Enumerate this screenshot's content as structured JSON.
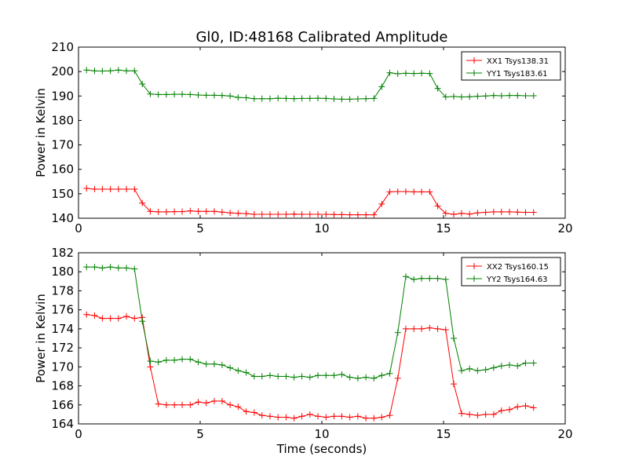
{
  "title": "Gl0, ID:48168 Calibrated Amplitude",
  "chart_data": [
    {
      "type": "line",
      "title": "Gl0, ID:48168 Calibrated Amplitude",
      "xlabel": "",
      "ylabel": "Power in Kelvin",
      "xlim": [
        0,
        20
      ],
      "ylim": [
        140,
        210
      ],
      "xticks": [
        "0",
        "5",
        "10",
        "15",
        "20"
      ],
      "yticks": [
        "140",
        "150",
        "160",
        "170",
        "180",
        "190",
        "200",
        "210"
      ],
      "grid": false,
      "legend_position": "top-right",
      "x": [
        0.33,
        0.66,
        0.98,
        1.31,
        1.64,
        1.97,
        2.3,
        2.62,
        2.95,
        3.28,
        3.61,
        3.94,
        4.26,
        4.59,
        4.92,
        5.25,
        5.58,
        5.9,
        6.23,
        6.56,
        6.89,
        7.22,
        7.54,
        7.87,
        8.2,
        8.53,
        8.86,
        9.18,
        9.51,
        9.84,
        10.17,
        10.5,
        10.82,
        11.15,
        11.48,
        11.81,
        12.14,
        12.46,
        12.79,
        13.12,
        13.45,
        13.78,
        14.1,
        14.43,
        14.76,
        15.09,
        15.42,
        15.74,
        16.07,
        16.4,
        16.73,
        17.06,
        17.38,
        17.71,
        18.04,
        18.37,
        18.7
      ],
      "series": [
        {
          "name": "XX1 Tsys138.31",
          "color": "#ff0000",
          "values": [
            152.2,
            151.9,
            151.9,
            151.9,
            151.9,
            151.9,
            151.9,
            146.2,
            142.8,
            142.6,
            142.6,
            142.7,
            142.7,
            143.0,
            142.8,
            142.8,
            142.8,
            142.5,
            142.2,
            142.0,
            141.9,
            141.6,
            141.6,
            141.6,
            141.6,
            141.6,
            141.7,
            141.6,
            141.6,
            141.6,
            141.6,
            141.5,
            141.5,
            141.4,
            141.4,
            141.4,
            141.4,
            145.8,
            150.8,
            150.9,
            150.9,
            150.8,
            150.8,
            150.8,
            145.0,
            142.0,
            141.6,
            142.0,
            141.7,
            142.2,
            142.4,
            142.6,
            142.6,
            142.6,
            142.5,
            142.4,
            142.4
          ]
        },
        {
          "name": "YY1 Tsys183.61",
          "color": "#008000",
          "values": [
            200.6,
            200.3,
            200.2,
            200.3,
            200.6,
            200.3,
            200.3,
            194.9,
            190.8,
            190.6,
            190.6,
            190.7,
            190.7,
            190.6,
            190.4,
            190.3,
            190.3,
            190.2,
            190.0,
            189.4,
            189.3,
            188.9,
            188.9,
            188.9,
            189.1,
            189.0,
            188.9,
            189.0,
            189.0,
            189.1,
            189.0,
            188.8,
            188.7,
            188.7,
            188.8,
            188.9,
            189.0,
            193.8,
            199.5,
            199.1,
            199.3,
            199.2,
            199.3,
            199.2,
            193.1,
            189.6,
            189.8,
            189.6,
            189.7,
            189.9,
            190.0,
            190.2,
            190.1,
            190.2,
            190.2,
            190.1,
            190.1
          ]
        }
      ]
    },
    {
      "type": "line",
      "title": "",
      "xlabel": "Time (seconds)",
      "ylabel": "Power in Kelvin",
      "xlim": [
        0,
        20
      ],
      "ylim": [
        164,
        182
      ],
      "xticks": [
        "0",
        "5",
        "10",
        "15",
        "20"
      ],
      "yticks": [
        "164",
        "166",
        "168",
        "170",
        "172",
        "174",
        "176",
        "178",
        "180",
        "182"
      ],
      "grid": false,
      "legend_position": "top-right",
      "x": [
        0.33,
        0.66,
        0.98,
        1.31,
        1.64,
        1.97,
        2.3,
        2.62,
        2.95,
        3.28,
        3.61,
        3.94,
        4.26,
        4.59,
        4.92,
        5.25,
        5.58,
        5.9,
        6.23,
        6.56,
        6.89,
        7.22,
        7.54,
        7.87,
        8.2,
        8.53,
        8.86,
        9.18,
        9.51,
        9.84,
        10.17,
        10.5,
        10.82,
        11.15,
        11.48,
        11.81,
        12.14,
        12.46,
        12.79,
        13.12,
        13.45,
        13.78,
        14.1,
        14.43,
        14.76,
        15.09,
        15.42,
        15.74,
        16.07,
        16.4,
        16.73,
        17.06,
        17.38,
        17.71,
        18.04,
        18.37,
        18.7
      ],
      "series": [
        {
          "name": "XX2 Tsys160.15",
          "color": "#ff0000",
          "values": [
            175.5,
            175.4,
            175.1,
            175.1,
            175.1,
            175.3,
            175.1,
            175.2,
            170.0,
            166.1,
            166.0,
            166.0,
            166.0,
            166.0,
            166.3,
            166.2,
            166.4,
            166.4,
            166.0,
            165.8,
            165.3,
            165.2,
            164.9,
            164.8,
            164.7,
            164.7,
            164.6,
            164.8,
            165.0,
            164.8,
            164.7,
            164.8,
            164.8,
            164.7,
            164.8,
            164.6,
            164.6,
            164.7,
            164.9,
            168.8,
            174.0,
            174.0,
            174.0,
            174.1,
            174.0,
            173.9,
            168.2,
            165.1,
            165.0,
            164.9,
            165.0,
            165.0,
            165.4,
            165.5,
            165.8,
            165.9,
            165.7
          ]
        },
        {
          "name": "YY2 Tsys164.63",
          "color": "#008000",
          "values": [
            180.5,
            180.5,
            180.4,
            180.5,
            180.4,
            180.4,
            180.3,
            174.8,
            170.6,
            170.5,
            170.7,
            170.7,
            170.8,
            170.8,
            170.5,
            170.3,
            170.3,
            170.2,
            169.9,
            169.6,
            169.4,
            169.0,
            169.0,
            169.1,
            169.0,
            169.0,
            168.9,
            169.0,
            168.9,
            169.1,
            169.1,
            169.1,
            169.2,
            168.9,
            168.8,
            168.9,
            168.8,
            169.1,
            169.3,
            173.6,
            179.5,
            179.2,
            179.3,
            179.3,
            179.3,
            179.2,
            173.0,
            169.6,
            169.8,
            169.6,
            169.7,
            169.9,
            170.1,
            170.2,
            170.1,
            170.4,
            170.4
          ]
        }
      ]
    }
  ]
}
